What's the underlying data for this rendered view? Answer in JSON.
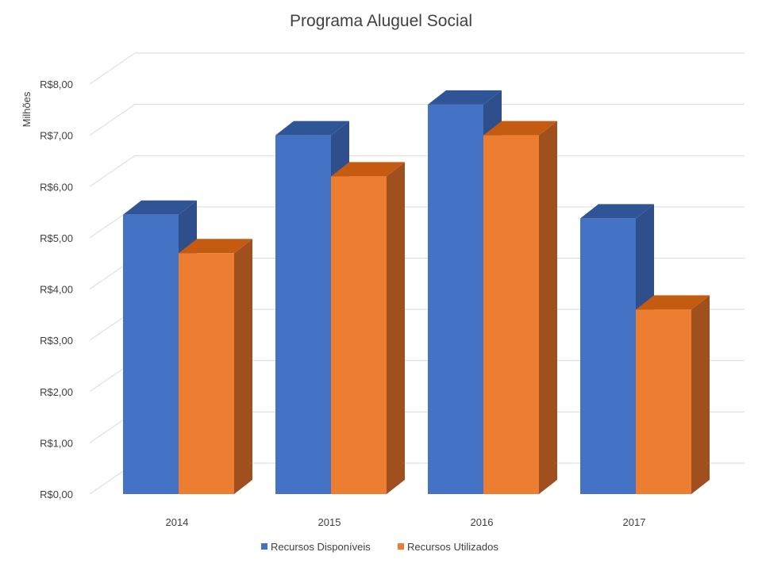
{
  "chart_data": {
    "type": "bar",
    "title": "Programa Aluguel Social",
    "ylabel": "Milhões",
    "xlabel": "",
    "categories": [
      "2014",
      "2015",
      "2016",
      "2017"
    ],
    "series": [
      {
        "name": "Recursos Disponíveis",
        "values": [
          5.45,
          7.0,
          7.6,
          5.38
        ],
        "color": "#4472c4",
        "top_color": "#2f5597",
        "side_color": "#2f4e8c"
      },
      {
        "name": "Recursos Utilizados",
        "values": [
          4.7,
          6.2,
          7.0,
          3.6
        ],
        "color": "#ed7d31",
        "top_color": "#c55a11",
        "side_color": "#a0501e"
      }
    ],
    "ylim": [
      0,
      8
    ],
    "yticks": [
      0,
      1,
      2,
      3,
      4,
      5,
      6,
      7,
      8
    ],
    "ytick_labels": [
      "R$0,00",
      "R$1,00",
      "R$2,00",
      "R$3,00",
      "R$4,00",
      "R$5,00",
      "R$6,00",
      "R$7,00",
      "R$8,00"
    ],
    "grid": true,
    "three_d": true,
    "legend_position": "bottom"
  }
}
